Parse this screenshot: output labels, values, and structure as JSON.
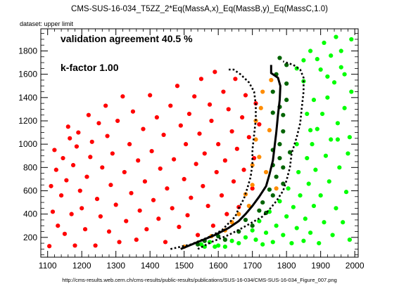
{
  "title": "CMS-SUS-16-034_T5ZZ_2*Eq(MassA,x)_Eq(MassB,y)_Eq(MassC,1.0)",
  "dataset_label": "dataset: upper limit",
  "url": "http://cms-results.web.cern.ch/cms-results/public-results/publications/SUS-16-034/CMS-SUS-16-034_Figure_007.png",
  "colors": {
    "excluded": "#ff0000",
    "allowed": "#00ff00",
    "agree_border": "#ff8c00",
    "dark_green": "#006400",
    "line": "#000000"
  },
  "chart_data": {
    "type": "scatter",
    "title": "CMS-SUS-16-034_T5ZZ_2*Eq(MassA,x)_Eq(MassB,y)_Eq(MassC,1.0)",
    "xlabel": "",
    "ylabel": "",
    "xlim": [
      1080,
      2010
    ],
    "ylim": [
      30,
      1990
    ],
    "x_ticks": [
      1100,
      1200,
      1300,
      1400,
      1500,
      1600,
      1700,
      1800,
      1900,
      2000
    ],
    "y_ticks": [
      200,
      400,
      600,
      800,
      1000,
      1200,
      1400,
      1600,
      1800
    ],
    "annotations": [
      "validation agreement 40.5 %",
      "k-factor 1.00"
    ],
    "grid": false,
    "series": [
      {
        "color": "#ff0000",
        "points": [
          [
            1105,
            125
          ],
          [
            1110,
            640
          ],
          [
            1115,
            420
          ],
          [
            1120,
            950
          ],
          [
            1125,
            780
          ],
          [
            1130,
            300
          ],
          [
            1140,
            560
          ],
          [
            1145,
            880
          ],
          [
            1150,
            230
          ],
          [
            1155,
            690
          ],
          [
            1160,
            1150
          ],
          [
            1165,
            1050
          ],
          [
            1170,
            400
          ],
          [
            1175,
            820
          ],
          [
            1180,
            130
          ],
          [
            1185,
            980
          ],
          [
            1190,
            1100
          ],
          [
            1195,
            600
          ],
          [
            1200,
            450
          ],
          [
            1210,
            270
          ],
          [
            1215,
            720
          ],
          [
            1220,
            1250
          ],
          [
            1225,
            890
          ],
          [
            1230,
            1020
          ],
          [
            1240,
            130
          ],
          [
            1245,
            530
          ],
          [
            1250,
            1180
          ],
          [
            1255,
            380
          ],
          [
            1260,
            800
          ],
          [
            1270,
            1330
          ],
          [
            1275,
            1070
          ],
          [
            1280,
            250
          ],
          [
            1285,
            650
          ],
          [
            1290,
            920
          ],
          [
            1300,
            480
          ],
          [
            1305,
            1200
          ],
          [
            1310,
            160
          ],
          [
            1320,
            1410
          ],
          [
            1325,
            760
          ],
          [
            1330,
            340
          ],
          [
            1340,
            1000
          ],
          [
            1345,
            580
          ],
          [
            1350,
            1280
          ],
          [
            1360,
            180
          ],
          [
            1365,
            860
          ],
          [
            1370,
            430
          ],
          [
            1380,
            1130
          ],
          [
            1385,
            680
          ],
          [
            1390,
            270
          ],
          [
            1400,
            1420
          ],
          [
            1405,
            940
          ],
          [
            1410,
            520
          ],
          [
            1420,
            1230
          ],
          [
            1425,
            360
          ],
          [
            1430,
            790
          ],
          [
            1440,
            1080
          ],
          [
            1445,
            160
          ],
          [
            1450,
            620
          ],
          [
            1460,
            1330
          ],
          [
            1465,
            450
          ],
          [
            1470,
            870
          ],
          [
            1480,
            1500
          ],
          [
            1485,
            290
          ],
          [
            1490,
            1160
          ],
          [
            1500,
            700
          ],
          [
            1505,
            1000
          ],
          [
            1510,
            390
          ],
          [
            1515,
            1260
          ],
          [
            1520,
            540
          ],
          [
            1530,
            1410
          ],
          [
            1535,
            830
          ],
          [
            1540,
            220
          ],
          [
            1545,
            1090
          ],
          [
            1550,
            1560
          ],
          [
            1555,
            640
          ],
          [
            1560,
            920
          ],
          [
            1570,
            470
          ],
          [
            1575,
            1340
          ],
          [
            1580,
            1200
          ],
          [
            1585,
            300
          ],
          [
            1590,
            1620
          ],
          [
            1595,
            760
          ],
          [
            1600,
            1000
          ],
          [
            1610,
            560
          ],
          [
            1615,
            1450
          ],
          [
            1620,
            860
          ],
          [
            1625,
            400
          ],
          [
            1630,
            1300
          ],
          [
            1640,
            1110
          ],
          [
            1645,
            680
          ],
          [
            1650,
            1560
          ],
          [
            1655,
            960
          ],
          [
            1660,
            460
          ],
          [
            1670,
            1230
          ],
          [
            1675,
            780
          ],
          [
            1680,
            1420
          ],
          [
            1690,
            1060
          ],
          [
            1700,
            620
          ],
          [
            1705,
            880
          ],
          [
            1710,
            1350
          ],
          [
            1720,
            1170
          ]
        ]
      },
      {
        "color": "#00ff00",
        "points": [
          [
            1550,
            140
          ],
          [
            1560,
            120
          ],
          [
            1575,
            160
          ],
          [
            1590,
            120
          ],
          [
            1600,
            130
          ],
          [
            1620,
            120
          ],
          [
            1640,
            170
          ],
          [
            1660,
            150
          ],
          [
            1680,
            200
          ],
          [
            1700,
            260
          ],
          [
            1710,
            180
          ],
          [
            1720,
            340
          ],
          [
            1730,
            140
          ],
          [
            1740,
            240
          ],
          [
            1750,
            420
          ],
          [
            1760,
            160
          ],
          [
            1770,
            300
          ],
          [
            1780,
            510
          ],
          [
            1790,
            220
          ],
          [
            1800,
            380
          ],
          [
            1805,
            620
          ],
          [
            1815,
            150
          ],
          [
            1820,
            460
          ],
          [
            1830,
            280
          ],
          [
            1835,
            760
          ],
          [
            1840,
            560
          ],
          [
            1850,
            170
          ],
          [
            1855,
            360
          ],
          [
            1860,
            880
          ],
          [
            1865,
            660
          ],
          [
            1870,
            240
          ],
          [
            1875,
            1000
          ],
          [
            1880,
            470
          ],
          [
            1885,
            780
          ],
          [
            1890,
            1130
          ],
          [
            1895,
            150
          ],
          [
            1900,
            560
          ],
          [
            1905,
            1260
          ],
          [
            1910,
            330
          ],
          [
            1915,
            900
          ],
          [
            1920,
            1400
          ],
          [
            1925,
            680
          ],
          [
            1930,
            1040
          ],
          [
            1935,
            220
          ],
          [
            1940,
            1530
          ],
          [
            1945,
            450
          ],
          [
            1950,
            1180
          ],
          [
            1955,
            800
          ],
          [
            1960,
            1660
          ],
          [
            1965,
            330
          ],
          [
            1970,
            1310
          ],
          [
            1975,
            590
          ],
          [
            1980,
            920
          ],
          [
            1985,
            1060
          ],
          [
            1990,
            1450
          ],
          [
            1985,
            180
          ],
          [
            1960,
            1800
          ],
          [
            1945,
            1920
          ],
          [
            1930,
            1760
          ],
          [
            1990,
            1900
          ],
          [
            1970,
            1600
          ],
          [
            1910,
            1870
          ],
          [
            1950,
            1040
          ],
          [
            1920,
            1580
          ],
          [
            1890,
            1730
          ],
          [
            1900,
            1640
          ],
          [
            1870,
            1800
          ],
          [
            1850,
            1720
          ],
          [
            1850,
            1540
          ],
          [
            1830,
            1650
          ],
          [
            1880,
            1380
          ],
          [
            1860,
            1260
          ],
          [
            1870,
            1120
          ],
          [
            1830,
            1000
          ]
        ]
      },
      {
        "color": "#ff8c00",
        "points": [
          [
            1500,
            120
          ],
          [
            1580,
            210
          ],
          [
            1620,
            260
          ],
          [
            1640,
            330
          ],
          [
            1660,
            400
          ],
          [
            1680,
            570
          ],
          [
            1690,
            470
          ],
          [
            1700,
            650
          ],
          [
            1700,
            820
          ],
          [
            1710,
            1040
          ],
          [
            1710,
            1200
          ],
          [
            1720,
            890
          ],
          [
            1725,
            1310
          ],
          [
            1730,
            1450
          ],
          [
            1740,
            760
          ],
          [
            1750,
            1120
          ],
          [
            1755,
            1550
          ],
          [
            1770,
            620
          ]
        ]
      },
      {
        "color": "#006400",
        "points": [
          [
            1540,
            140
          ],
          [
            1560,
            170
          ],
          [
            1600,
            210
          ],
          [
            1620,
            180
          ],
          [
            1660,
            250
          ],
          [
            1680,
            350
          ],
          [
            1700,
            300
          ],
          [
            1720,
            430
          ],
          [
            1730,
            500
          ],
          [
            1740,
            410
          ],
          [
            1750,
            610
          ],
          [
            1760,
            560
          ],
          [
            1770,
            720
          ],
          [
            1780,
            880
          ],
          [
            1780,
            1000
          ],
          [
            1790,
            1110
          ],
          [
            1790,
            800
          ],
          [
            1790,
            1250
          ],
          [
            1800,
            1380
          ],
          [
            1800,
            1520
          ],
          [
            1810,
            930
          ],
          [
            1800,
            1680
          ],
          [
            1780,
            1740
          ],
          [
            1760,
            1450
          ],
          [
            1760,
            1270
          ],
          [
            1770,
            1600
          ],
          [
            1780,
            1320
          ],
          [
            1760,
            950
          ],
          [
            1760,
            820
          ],
          [
            1790,
            660
          ]
        ]
      }
    ],
    "lines": [
      {
        "style": "solid",
        "points": [
          [
            1490,
            100
          ],
          [
            1540,
            160
          ],
          [
            1590,
            220
          ],
          [
            1630,
            280
          ],
          [
            1660,
            340
          ],
          [
            1680,
            400
          ],
          [
            1700,
            470
          ],
          [
            1720,
            550
          ],
          [
            1740,
            640
          ],
          [
            1750,
            740
          ],
          [
            1760,
            860
          ],
          [
            1765,
            980
          ],
          [
            1770,
            1100
          ],
          [
            1775,
            1250
          ],
          [
            1780,
            1380
          ],
          [
            1782,
            1500
          ],
          [
            1775,
            1570
          ],
          [
            1755,
            1610
          ],
          [
            1755,
            1680
          ]
        ]
      },
      {
        "style": "dotted",
        "points": [
          [
            1460,
            100
          ],
          [
            1520,
            140
          ],
          [
            1570,
            200
          ],
          [
            1610,
            260
          ],
          [
            1630,
            320
          ],
          [
            1650,
            380
          ],
          [
            1660,
            450
          ],
          [
            1675,
            530
          ],
          [
            1685,
            620
          ],
          [
            1695,
            720
          ],
          [
            1700,
            830
          ],
          [
            1700,
            950
          ],
          [
            1705,
            1080
          ],
          [
            1710,
            1210
          ],
          [
            1710,
            1340
          ],
          [
            1705,
            1450
          ],
          [
            1690,
            1530
          ],
          [
            1665,
            1600
          ],
          [
            1645,
            1640
          ],
          [
            1630,
            1640
          ],
          [
            1625,
            1640
          ]
        ]
      },
      {
        "style": "dotted",
        "points": [
          [
            1540,
            100
          ],
          [
            1580,
            160
          ],
          [
            1630,
            220
          ],
          [
            1670,
            280
          ],
          [
            1700,
            330
          ],
          [
            1730,
            380
          ],
          [
            1750,
            440
          ],
          [
            1770,
            510
          ],
          [
            1790,
            600
          ],
          [
            1800,
            690
          ],
          [
            1810,
            800
          ],
          [
            1815,
            920
          ],
          [
            1830,
            1060
          ],
          [
            1840,
            1180
          ],
          [
            1845,
            1320
          ],
          [
            1850,
            1450
          ],
          [
            1850,
            1570
          ],
          [
            1840,
            1640
          ],
          [
            1820,
            1680
          ],
          [
            1800,
            1700
          ],
          [
            1790,
            1710
          ]
        ]
      }
    ]
  }
}
